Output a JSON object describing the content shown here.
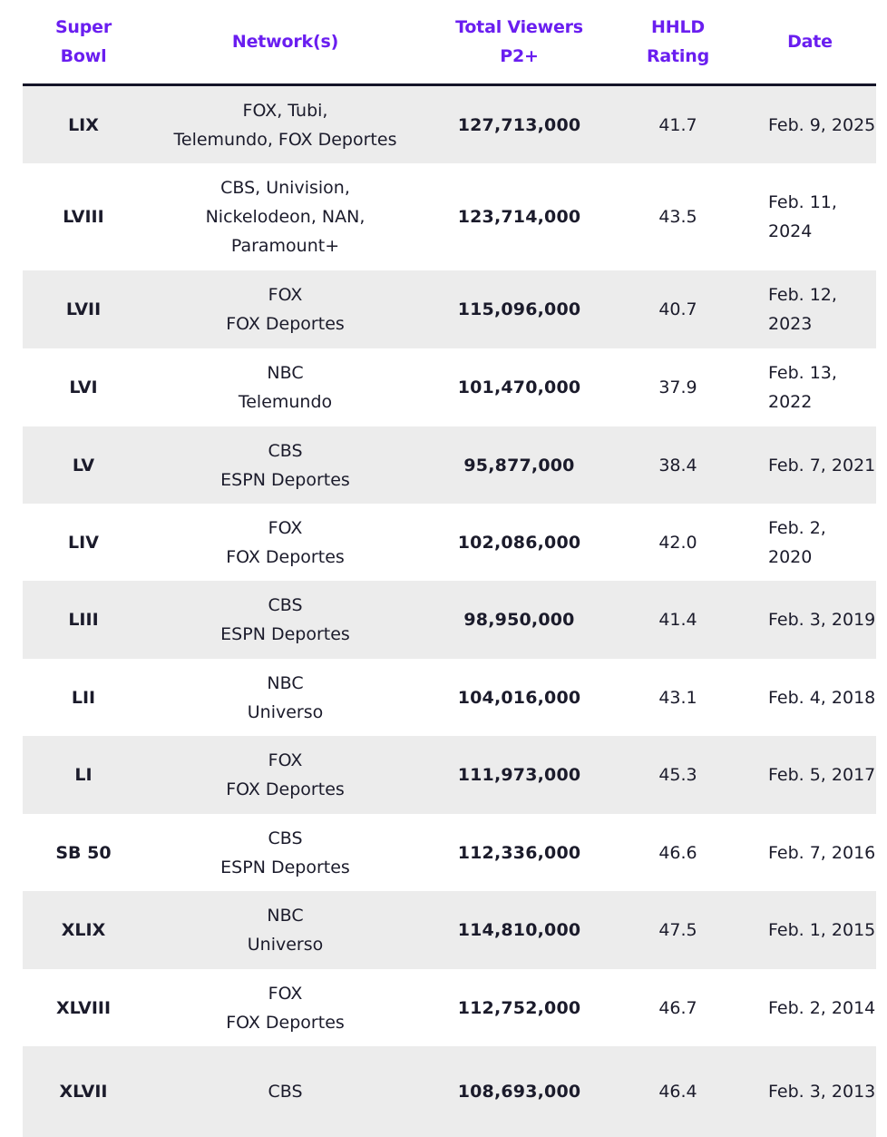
{
  "headers": {
    "super_bowl": "Super\nBowl",
    "networks": "Network(s)",
    "total_viewers": "Total Viewers\nP2+",
    "hhld_rating": "HHLD\nRating",
    "date": "Date"
  },
  "colors": {
    "header_text": "#6a1ef0",
    "row_shade": "#ececec",
    "rule": "#141428"
  },
  "rows": [
    {
      "bowl": "LIX",
      "networks": "FOX, Tubi,\nTelemundo, FOX Deportes",
      "viewers": "127,713,000",
      "rating": "41.7",
      "date": "Feb. 9, 2025"
    },
    {
      "bowl": "LVIII",
      "networks": "CBS, Univision,\nNickelodeon, NAN,\nParamount+",
      "viewers": "123,714,000",
      "rating": "43.5",
      "date": "Feb. 11,\n2024"
    },
    {
      "bowl": "LVII",
      "networks": "FOX\nFOX Deportes",
      "viewers": "115,096,000",
      "rating": "40.7",
      "date": "Feb. 12,\n2023"
    },
    {
      "bowl": "LVI",
      "networks": "NBC\nTelemundo",
      "viewers": "101,470,000",
      "rating": "37.9",
      "date": "Feb. 13,\n2022"
    },
    {
      "bowl": "LV",
      "networks": "CBS\nESPN Deportes",
      "viewers": "95,877,000",
      "rating": "38.4",
      "date": "Feb. 7, 2021"
    },
    {
      "bowl": "LIV",
      "networks": "FOX\nFOX Deportes",
      "viewers": "102,086,000",
      "rating": "42.0",
      "date": "Feb. 2,\n2020"
    },
    {
      "bowl": "LIII",
      "networks": "CBS\nESPN Deportes",
      "viewers": "98,950,000",
      "rating": "41.4",
      "date": "Feb. 3, 2019"
    },
    {
      "bowl": "LII",
      "networks": "NBC\nUniverso",
      "viewers": "104,016,000",
      "rating": "43.1",
      "date": "Feb. 4, 2018"
    },
    {
      "bowl": "LI",
      "networks": "FOX\nFOX Deportes",
      "viewers": "111,973,000",
      "rating": "45.3",
      "date": "Feb. 5, 2017"
    },
    {
      "bowl": "SB 50",
      "networks": "CBS\nESPN Deportes",
      "viewers": "112,336,000",
      "rating": "46.6",
      "date": "Feb. 7, 2016"
    },
    {
      "bowl": "XLIX",
      "networks": "NBC\nUniverso",
      "viewers": "114,810,000",
      "rating": "47.5",
      "date": "Feb. 1, 2015"
    },
    {
      "bowl": "XLVIII",
      "networks": "FOX\nFOX Deportes",
      "viewers": "112,752,000",
      "rating": "46.7",
      "date": "Feb. 2, 2014"
    },
    {
      "bowl": "XLVII",
      "networks": "CBS",
      "viewers": "108,693,000",
      "rating": "46.4",
      "date": "Feb. 3, 2013"
    }
  ]
}
